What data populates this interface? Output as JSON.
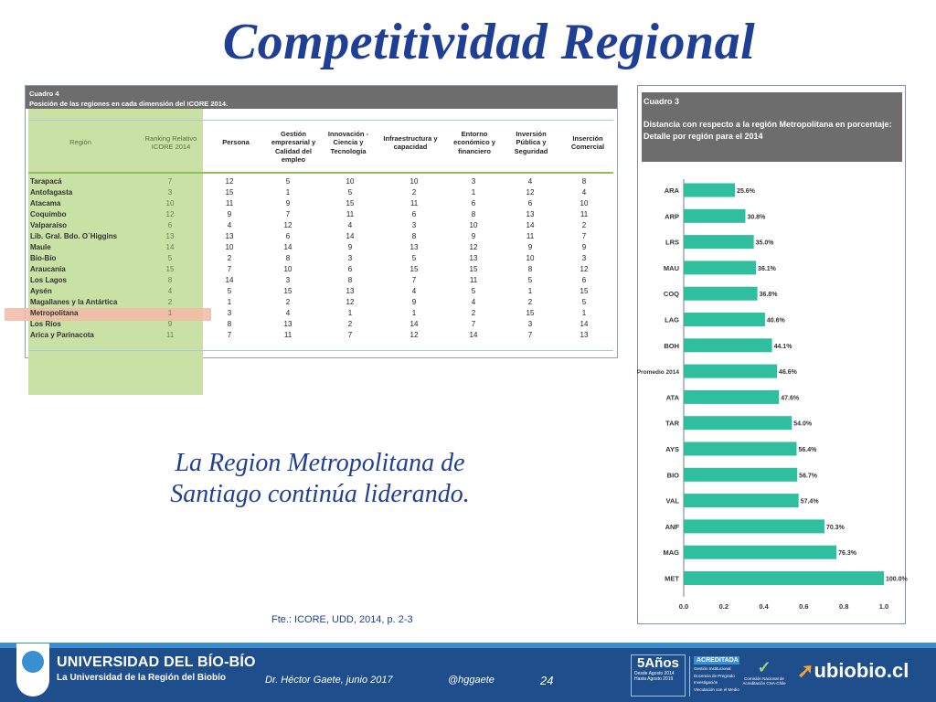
{
  "slide": {
    "title": "Competitividad Regional",
    "quote_line1": "La Region Metropolitana de",
    "quote_line2": "Santiago continúa liderando.",
    "source": "Fte.: ICORE, UDD, 2014, p. 2-3"
  },
  "table": {
    "label": "Cuadro 4",
    "caption": "Posición de las regiones en cada dimensión del ICORE 2014.",
    "highlight_row": "Metropolitana",
    "columns": [
      "Región",
      "Ranking Relativo ICORE 2014",
      "Persona",
      "Gestión empresarial y Calidad del empleo",
      "Innovación - Ciencia y Tecnología",
      "Infraestructura y capacidad",
      "Entorno económico y financiero",
      "Inversión Pública y Seguridad",
      "Inserción Comercial"
    ],
    "rows": [
      {
        "region": "Tarapacá",
        "values": [
          "7",
          "12",
          "5",
          "10",
          "10",
          "3",
          "4",
          "8"
        ]
      },
      {
        "region": "Antofagasta",
        "values": [
          "3",
          "15",
          "1",
          "5",
          "2",
          "1",
          "12",
          "4"
        ]
      },
      {
        "region": "Atacama",
        "values": [
          "10",
          "11",
          "9",
          "15",
          "11",
          "6",
          "6",
          "10"
        ]
      },
      {
        "region": "Coquimbo",
        "values": [
          "12",
          "9",
          "7",
          "11",
          "6",
          "8",
          "13",
          "11"
        ]
      },
      {
        "region": "Valparaíso",
        "values": [
          "6",
          "4",
          "12",
          "4",
          "3",
          "10",
          "14",
          "2"
        ]
      },
      {
        "region": "Lib. Gral. Bdo. O´Higgins",
        "values": [
          "13",
          "13",
          "6",
          "14",
          "8",
          "9",
          "11",
          "7"
        ]
      },
      {
        "region": "Maule",
        "values": [
          "14",
          "10",
          "14",
          "9",
          "13",
          "12",
          "9",
          "9"
        ]
      },
      {
        "region": "Bío-Bío",
        "values": [
          "5",
          "2",
          "8",
          "3",
          "5",
          "13",
          "10",
          "3"
        ]
      },
      {
        "region": "Araucanía",
        "values": [
          "15",
          "7",
          "10",
          "6",
          "15",
          "15",
          "8",
          "12"
        ]
      },
      {
        "region": "Los Lagos",
        "values": [
          "8",
          "14",
          "3",
          "8",
          "7",
          "11",
          "5",
          "6"
        ]
      },
      {
        "region": "Aysén",
        "values": [
          "4",
          "5",
          "15",
          "13",
          "4",
          "5",
          "1",
          "15"
        ]
      },
      {
        "region": "Magallanes y la Antártica",
        "values": [
          "2",
          "1",
          "2",
          "12",
          "9",
          "4",
          "2",
          "5"
        ]
      },
      {
        "region": "Metropolitana",
        "values": [
          "1",
          "3",
          "4",
          "1",
          "1",
          "2",
          "15",
          "1"
        ]
      },
      {
        "region": "Los Ríos",
        "values": [
          "9",
          "8",
          "13",
          "2",
          "14",
          "7",
          "3",
          "14"
        ]
      },
      {
        "region": "Arica y Parinacota",
        "values": [
          "11",
          "7",
          "11",
          "7",
          "12",
          "14",
          "7",
          "13"
        ]
      }
    ]
  },
  "chart_header": {
    "label": "Cuadro 3",
    "title": "Distancia con respecto a la región Metropolitana en porcentaje:",
    "subtitle": "Detalle por región para el 2014"
  },
  "chart_data": {
    "type": "bar",
    "orientation": "horizontal",
    "categories": [
      "ARA",
      "ARP",
      "LRS",
      "MAU",
      "COQ",
      "LAG",
      "BOH",
      "Promedio 2014",
      "ATA",
      "TAR",
      "AYS",
      "BIO",
      "VAL",
      "ANF",
      "MAG",
      "MET"
    ],
    "values": [
      0.256,
      0.308,
      0.35,
      0.361,
      0.368,
      0.406,
      0.441,
      0.466,
      0.476,
      0.54,
      0.564,
      0.567,
      0.574,
      0.703,
      0.763,
      1.0
    ],
    "data_labels": [
      "25.6%",
      "30.8%",
      "35.0%",
      "36.1%",
      "36.8%",
      "40.6%",
      "44.1%",
      "46.6%",
      "47.6%",
      "54.0%",
      "56.4%",
      "56.7%",
      "57.4%",
      "70.3%",
      "76.3%",
      "100.0%"
    ],
    "xlim": [
      0,
      1.0
    ],
    "xticks": [
      "0.0",
      "0.2",
      "0.4",
      "0.6",
      "0.8",
      "1.0"
    ],
    "color": "#2fbf9f",
    "grid": false
  },
  "footer": {
    "university": "UNIVERSIDAD DEL BÍO-BÍO",
    "tagline": "La Universidad de la Región del Biobío",
    "author": "Dr. Héctor Gaete, junio 2017",
    "handle": "@hggaete",
    "page": "24",
    "badge_years": "5Años",
    "badge_l1": "Desde Agosto 2014",
    "badge_l2": "Hasta Agosto 2019",
    "acred_title": "ACREDITADA",
    "acred_items": [
      "Gestión Institucional",
      "Docencia de Pregrado",
      "Investigación",
      "Vinculación con el Medio"
    ],
    "cna_text": "Comisión Nacional de Acreditación CNA-Chile",
    "website": "ubiobio.cl"
  }
}
